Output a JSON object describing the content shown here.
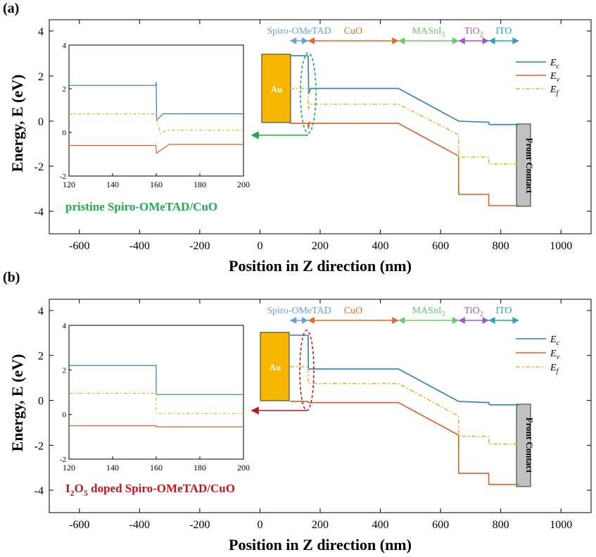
{
  "colors": {
    "ec": "#2f7ec0",
    "ev": "#d9622b",
    "ef": "#e3b52e",
    "au": "#f7b700",
    "front": "#c0c0c0",
    "spiro": "#6a9fd8",
    "cuo": "#e06a2a",
    "masni": "#67c96a",
    "tio2": "#9b59d0",
    "ito": "#2aa3b8",
    "green": "#1cad4f",
    "red": "#c0161c"
  },
  "chart_data": [
    {
      "type": "line",
      "panel_label": "(a)",
      "title": "pristine Spiro-OMeTAD/CuO",
      "xlabel": "Position in Z direction (nm)",
      "ylabel": "Energy, E (eV)",
      "xlim": [
        -700,
        1100
      ],
      "ylim": [
        -5,
        4.5
      ],
      "xticks": [
        -600,
        -400,
        -200,
        0,
        200,
        400,
        600,
        800,
        1000
      ],
      "yticks": [
        -4,
        -2,
        0,
        2,
        4
      ],
      "layers": [
        {
          "name": "Spiro-OMeTAD",
          "from": 100,
          "to": 160
        },
        {
          "name": "CuO",
          "from": 160,
          "to": 460
        },
        {
          "name": "MASnI3",
          "from": 460,
          "to": 660
        },
        {
          "name": "TiO2",
          "from": 660,
          "to": 760
        },
        {
          "name": "ITO",
          "from": 760,
          "to": 860
        }
      ],
      "legend": [
        "E_c",
        "E_v",
        "E_f"
      ],
      "electrode_left": "Au",
      "electrode_right": "Front Contact",
      "series": [
        {
          "name": "E_c",
          "x": [
            100,
            160,
            162,
            168,
            460,
            660,
            760,
            762,
            770,
            860
          ],
          "y": [
            2.9,
            2.9,
            1.2,
            1.45,
            1.45,
            0.0,
            -0.05,
            -0.15,
            -0.15,
            -0.15
          ]
        },
        {
          "name": "E_v",
          "x": [
            100,
            160,
            161,
            164,
            168,
            460,
            660,
            660,
            760,
            760,
            860
          ],
          "y": [
            -0.1,
            -0.1,
            -0.35,
            -0.05,
            -0.1,
            -0.1,
            -1.55,
            -3.25,
            -3.25,
            -3.75,
            -3.75
          ]
        },
        {
          "name": "E_f",
          "x": [
            100,
            160,
            161,
            165,
            460,
            660,
            660,
            760,
            760,
            860
          ],
          "y": [
            1.45,
            1.45,
            0.5,
            0.75,
            0.75,
            -0.6,
            -1.6,
            -1.6,
            -1.9,
            -1.9
          ]
        }
      ],
      "inset": {
        "xlim": [
          120,
          200
        ],
        "ylim": [
          -2,
          4
        ],
        "xticks": [
          120,
          140,
          160,
          180,
          200
        ],
        "yticks": [
          -2,
          0,
          2,
          4
        ],
        "series": [
          {
            "name": "E_c",
            "x": [
              120,
              159.8,
              160,
              160.2,
              163,
              200
            ],
            "y": [
              2.15,
              2.15,
              2.3,
              0.55,
              0.85,
              0.85
            ]
          },
          {
            "name": "E_f",
            "x": [
              120,
              159.8,
              160,
              162,
              165,
              200
            ],
            "y": [
              0.85,
              0.85,
              0.65,
              -0.05,
              0.1,
              0.1
            ]
          },
          {
            "name": "E_v",
            "x": [
              120,
              159.8,
              160.2,
              166,
              200
            ],
            "y": [
              -0.6,
              -0.6,
              -0.95,
              -0.55,
              -0.55
            ]
          }
        ]
      }
    },
    {
      "type": "line",
      "panel_label": "(b)",
      "title_part1": "I",
      "title_sub1": "2",
      "title_part2": "O",
      "title_sub2": "5",
      "title_part3": " doped Spiro-OMeTAD/CuO",
      "xlabel": "Position in Z direction (nm)",
      "ylabel": "Energy, E (eV)",
      "xlim": [
        -700,
        1100
      ],
      "ylim": [
        -5,
        4.5
      ],
      "xticks": [
        -600,
        -400,
        -200,
        0,
        200,
        400,
        600,
        800,
        1000
      ],
      "yticks": [
        -4,
        -2,
        0,
        2,
        4
      ],
      "layers": [
        {
          "name": "Spiro-OMeTAD",
          "from": 100,
          "to": 160
        },
        {
          "name": "CuO",
          "from": 160,
          "to": 460
        },
        {
          "name": "MASnI3",
          "from": 460,
          "to": 660
        },
        {
          "name": "TiO2",
          "from": 660,
          "to": 760
        },
        {
          "name": "ITO",
          "from": 760,
          "to": 860
        }
      ],
      "legend": [
        "E_c",
        "E_v",
        "E_f"
      ],
      "electrode_left": "Au",
      "electrode_right": "Front Contact",
      "series": [
        {
          "name": "E_c",
          "x": [
            100,
            160,
            161,
            460,
            660,
            760,
            762,
            770,
            860
          ],
          "y": [
            2.9,
            2.9,
            1.4,
            1.4,
            -0.05,
            -0.1,
            -0.2,
            -0.2,
            -0.2
          ]
        },
        {
          "name": "E_v",
          "x": [
            100,
            160,
            161,
            460,
            660,
            660,
            760,
            760,
            860
          ],
          "y": [
            -0.05,
            -0.05,
            -0.1,
            -0.1,
            -1.55,
            -3.25,
            -3.25,
            -3.75,
            -3.75
          ]
        },
        {
          "name": "E_f",
          "x": [
            100,
            160,
            161,
            460,
            660,
            660,
            760,
            760,
            860
          ],
          "y": [
            1.5,
            1.5,
            0.75,
            0.75,
            -0.7,
            -1.6,
            -1.6,
            -1.95,
            -1.95
          ]
        }
      ],
      "inset": {
        "xlim": [
          120,
          200
        ],
        "ylim": [
          -2,
          4
        ],
        "xticks": [
          120,
          140,
          160,
          180,
          200
        ],
        "yticks": [
          -2,
          0,
          2,
          4
        ],
        "series": [
          {
            "name": "E_c",
            "x": [
              120,
              160,
              160,
              200
            ],
            "y": [
              2.2,
              2.2,
              0.9,
              0.9
            ]
          },
          {
            "name": "E_f",
            "x": [
              120,
              160,
              160,
              200
            ],
            "y": [
              0.95,
              0.95,
              0.05,
              0.05
            ]
          },
          {
            "name": "E_v",
            "x": [
              120,
              160,
              160,
              200
            ],
            "y": [
              -0.5,
              -0.5,
              -0.55,
              -0.55
            ]
          }
        ]
      }
    }
  ]
}
